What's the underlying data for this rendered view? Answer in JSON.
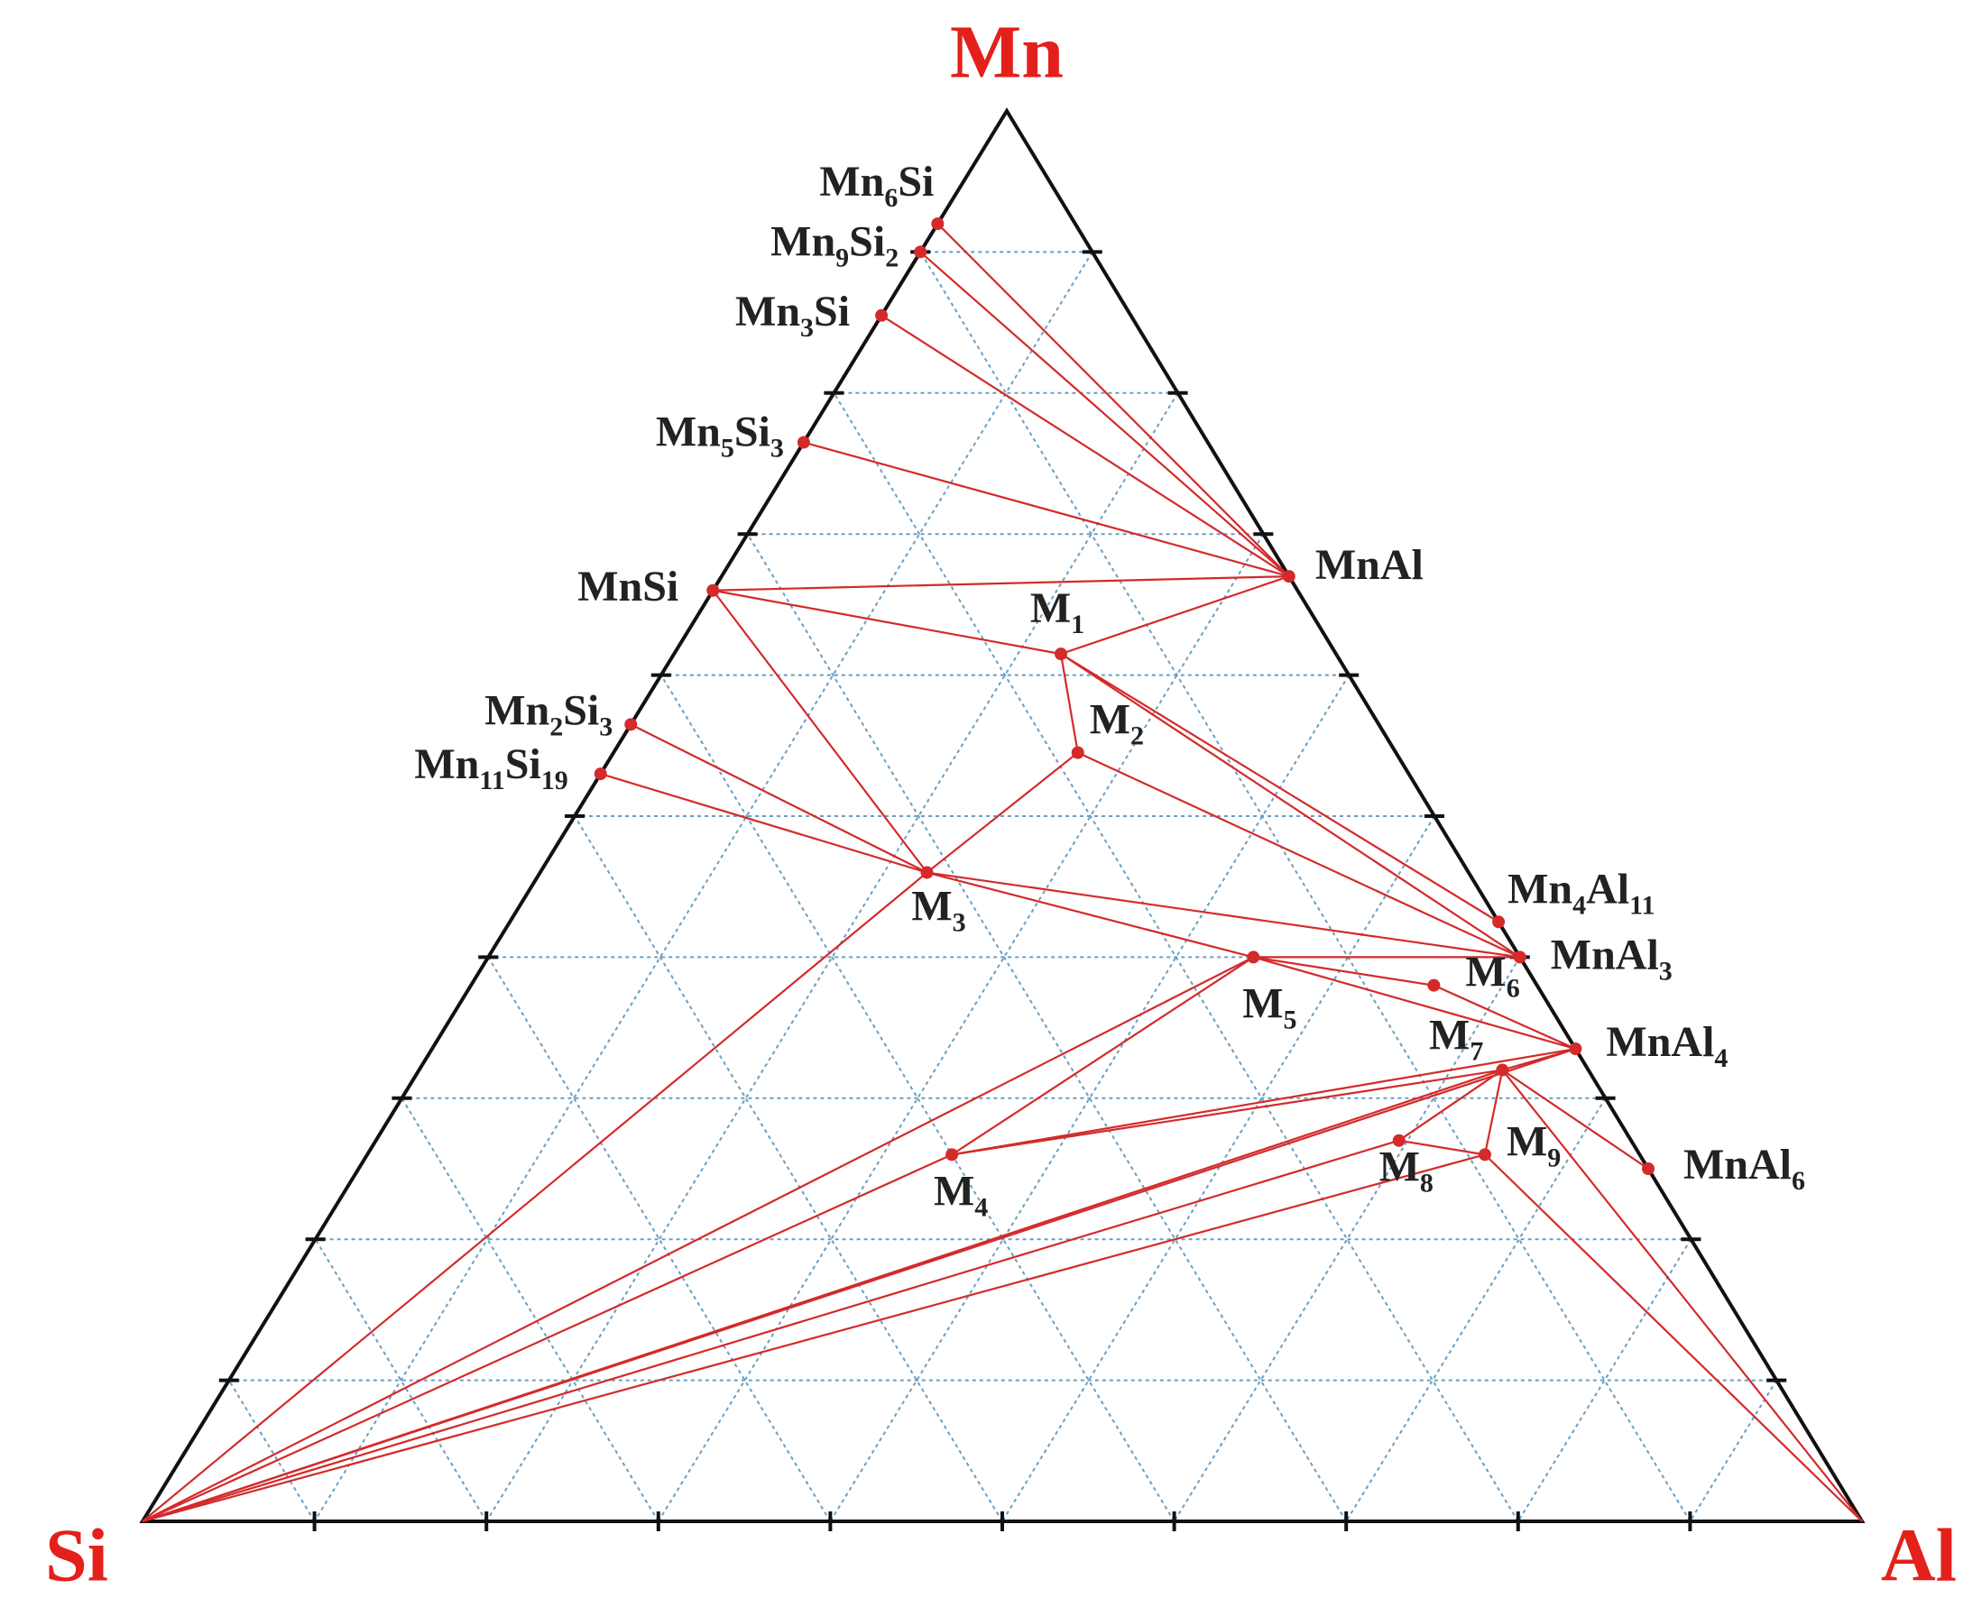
{
  "chart_data": {
    "type": "ternary",
    "components": [
      "Mn",
      "Si",
      "Al"
    ],
    "lim": [
      0,
      100
    ],
    "ticks": [
      10,
      20,
      30,
      40,
      50,
      60,
      70,
      80,
      90
    ],
    "grid": true,
    "vertex_color": "#e3201b",
    "color": "#d42a2a",
    "grid_color": "#6a9ec0",
    "points": [
      {
        "label": "Mn6Si",
        "values": [
          92,
          8,
          0
        ]
      },
      {
        "label": "Mn9Si2",
        "values": [
          90,
          10,
          0
        ]
      },
      {
        "label": "Mn3Si",
        "values": [
          85.5,
          14.5,
          0
        ]
      },
      {
        "label": "Mn5Si3",
        "values": [
          76.5,
          23.5,
          0
        ]
      },
      {
        "label": "MnSi",
        "values": [
          66,
          34,
          0
        ]
      },
      {
        "label": "Mn2Si3",
        "values": [
          56.5,
          43.5,
          0
        ]
      },
      {
        "label": "Mn11Si19",
        "values": [
          53,
          47,
          0
        ]
      },
      {
        "label": "MnAl",
        "values": [
          67,
          0,
          33
        ]
      },
      {
        "label": "Mn4Al11",
        "values": [
          42.5,
          0,
          57.5
        ]
      },
      {
        "label": "MnAl3",
        "values": [
          40,
          0,
          60
        ]
      },
      {
        "label": "MnAl4",
        "values": [
          33.5,
          0,
          66.5
        ]
      },
      {
        "label": "MnAl6",
        "values": [
          25,
          0,
          75
        ]
      },
      {
        "label": "M1",
        "values": [
          61.5,
          16,
          22.5
        ]
      },
      {
        "label": "M2",
        "values": [
          54.5,
          18.5,
          27
        ]
      },
      {
        "label": "M3",
        "values": [
          46,
          31.5,
          22.5
        ]
      },
      {
        "label": "M4",
        "values": [
          26,
          40,
          34
        ]
      },
      {
        "label": "M5",
        "values": [
          40,
          15.5,
          44.5
        ]
      },
      {
        "label": "M6",
        "values": [
          38,
          6,
          56
        ]
      },
      {
        "label": "M7",
        "values": [
          32,
          5,
          63
        ]
      },
      {
        "label": "M8",
        "values": [
          27,
          13.5,
          59.5
        ]
      },
      {
        "label": "M9",
        "values": [
          26,
          9,
          65
        ]
      }
    ],
    "tie_lines": [
      [
        "Mn6Si",
        "MnAl"
      ],
      [
        "Mn9Si2",
        "MnAl"
      ],
      [
        "Mn3Si",
        "MnAl"
      ],
      [
        "Mn5Si3",
        "MnAl"
      ],
      [
        "MnSi",
        "MnAl"
      ],
      [
        "MnSi",
        "M1"
      ],
      [
        "M1",
        "MnAl"
      ],
      [
        "MnSi",
        "M3"
      ],
      [
        "M1",
        "M2"
      ],
      [
        "M1",
        "Mn4Al11"
      ],
      [
        "M1",
        "MnAl3"
      ],
      [
        "M2",
        "M3"
      ],
      [
        "M2",
        "MnAl3"
      ],
      [
        "Mn2Si3",
        "M3"
      ],
      [
        "Mn11Si19",
        "M3"
      ],
      [
        "M3",
        "MnAl3"
      ],
      [
        "M3",
        "M5"
      ],
      [
        "M5",
        "MnAl3"
      ],
      [
        "M5",
        "MnAl4"
      ],
      [
        "M5",
        "M6"
      ],
      [
        "M6",
        "MnAl4"
      ],
      [
        "M3",
        "Si"
      ],
      [
        "M5",
        "Si"
      ],
      [
        "M5",
        "M4"
      ],
      [
        "M4",
        "M7"
      ],
      [
        "M4",
        "MnAl4"
      ],
      [
        "M7",
        "MnAl4"
      ],
      [
        "Si",
        "M7"
      ],
      [
        "Si",
        "MnAl4"
      ],
      [
        "Si",
        "M8"
      ],
      [
        "Si",
        "M9"
      ],
      [
        "Si",
        "M4"
      ],
      [
        "M7",
        "M8"
      ],
      [
        "M7",
        "M9"
      ],
      [
        "M7",
        "MnAl6"
      ],
      [
        "M8",
        "M9"
      ],
      [
        "M9",
        "Al"
      ],
      [
        "M7",
        "Al"
      ]
    ]
  }
}
